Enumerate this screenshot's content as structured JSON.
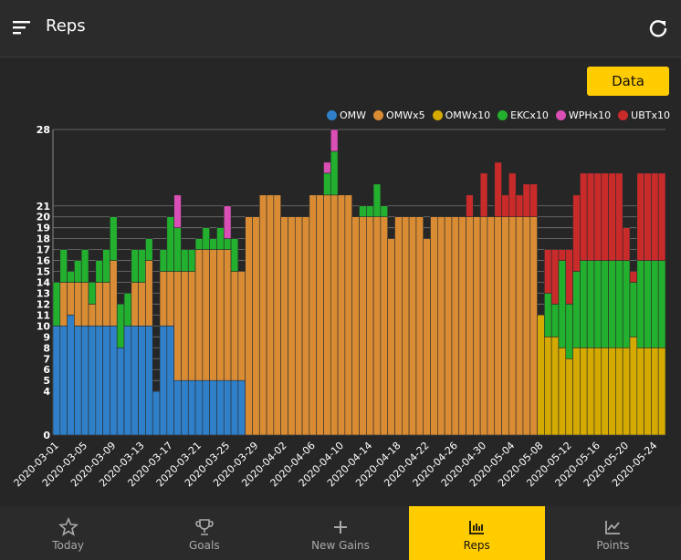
{
  "header": {
    "title": "Reps"
  },
  "button": "Data",
  "nav": [
    "Today",
    "Goals",
    "New Gains",
    "Reps",
    "Points"
  ],
  "chart_data": {
    "type": "bar",
    "stacked": true,
    "categories": [
      "2020-03-01",
      null,
      null,
      null,
      "2020-03-05",
      null,
      null,
      null,
      "2020-03-09",
      null,
      null,
      null,
      "2020-03-13",
      null,
      null,
      null,
      "2020-03-17",
      null,
      null,
      null,
      "2020-03-21",
      null,
      null,
      null,
      "2020-03-25",
      null,
      null,
      null,
      "2020-03-29",
      null,
      null,
      null,
      "2020-04-02",
      null,
      null,
      null,
      "2020-04-06",
      null,
      null,
      null,
      "2020-04-10",
      null,
      null,
      null,
      "2020-04-14",
      null,
      null,
      null,
      "2020-04-18",
      null,
      null,
      null,
      "2020-04-22",
      null,
      null,
      null,
      "2020-04-26",
      null,
      null,
      null,
      "2020-04-30",
      null,
      null,
      null,
      "2020-05-04",
      null,
      null,
      null,
      "2020-05-08",
      null,
      null,
      null,
      "2020-05-12",
      null,
      null,
      null,
      "2020-05-16",
      null,
      null,
      null,
      "2020-05-20",
      null,
      null,
      null,
      "2020-05-24",
      null
    ],
    "series": [
      {
        "name": "OMW",
        "color": "#2f80c9",
        "values": [
          10,
          10,
          11,
          10,
          10,
          10,
          10,
          10,
          10,
          8,
          10,
          10,
          10,
          10,
          4,
          10,
          10,
          5,
          5,
          5,
          5,
          5,
          5,
          5,
          5,
          5,
          5,
          0,
          0,
          0,
          0,
          0,
          0,
          0,
          0,
          0,
          0,
          0,
          0,
          0,
          0,
          0,
          0,
          0,
          0,
          0,
          0,
          0,
          0,
          0,
          0,
          0,
          0,
          0,
          0,
          0,
          0,
          0,
          0,
          0,
          0,
          0,
          0,
          0,
          0,
          0,
          0,
          0,
          0,
          0,
          0,
          0,
          0,
          0,
          0,
          0,
          0,
          0,
          0,
          0,
          0,
          0,
          0,
          0,
          0,
          0
        ]
      },
      {
        "name": "OMWx5",
        "color": "#d98c33",
        "values": [
          0,
          4,
          3,
          4,
          4,
          2,
          4,
          4,
          6,
          0,
          0,
          4,
          4,
          6,
          0,
          5,
          5,
          10,
          10,
          10,
          12,
          12,
          12,
          12,
          12,
          10,
          10,
          20,
          20,
          22,
          22,
          22,
          20,
          20,
          20,
          20,
          22,
          22,
          22,
          22,
          22,
          22,
          20,
          20,
          20,
          20,
          20,
          18,
          20,
          20,
          20,
          20,
          18,
          20,
          20,
          20,
          20,
          20,
          20,
          20,
          20,
          20,
          20,
          20,
          20,
          20,
          20,
          20,
          0,
          0,
          0,
          0,
          0,
          0,
          0,
          0,
          0,
          0,
          0,
          0,
          0,
          0,
          0,
          0,
          0,
          0
        ]
      },
      {
        "name": "OMWx10",
        "color": "#d4aa00",
        "values": [
          0,
          0,
          0,
          0,
          0,
          0,
          0,
          0,
          0,
          0,
          0,
          0,
          0,
          0,
          0,
          0,
          0,
          0,
          0,
          0,
          0,
          0,
          0,
          0,
          0,
          0,
          0,
          0,
          0,
          0,
          0,
          0,
          0,
          0,
          0,
          0,
          0,
          0,
          0,
          0,
          0,
          0,
          0,
          0,
          0,
          0,
          0,
          0,
          0,
          0,
          0,
          0,
          0,
          0,
          0,
          0,
          0,
          0,
          0,
          0,
          0,
          0,
          0,
          0,
          0,
          0,
          0,
          0,
          11,
          9,
          9,
          8,
          7,
          8,
          8,
          8,
          8,
          8,
          8,
          8,
          8,
          9,
          8,
          8,
          8,
          8
        ]
      },
      {
        "name": "EKCx10",
        "color": "#22b02e",
        "values": [
          4,
          3,
          1,
          2,
          3,
          2,
          2,
          3,
          4,
          4,
          3,
          3,
          3,
          2,
          0,
          2,
          5,
          4,
          2,
          2,
          1,
          2,
          1,
          2,
          1,
          3,
          0,
          0,
          0,
          0,
          0,
          0,
          0,
          0,
          0,
          0,
          0,
          0,
          2,
          4,
          0,
          0,
          0,
          1,
          1,
          3,
          1,
          0,
          0,
          0,
          0,
          0,
          0,
          0,
          0,
          0,
          0,
          0,
          0,
          0,
          0,
          0,
          0,
          0,
          0,
          0,
          0,
          0,
          0,
          4,
          3,
          8,
          5,
          7,
          8,
          8,
          8,
          8,
          8,
          8,
          8,
          5,
          8,
          8,
          8,
          8
        ]
      },
      {
        "name": "WPHx10",
        "color": "#d94fb5",
        "values": [
          0,
          0,
          0,
          0,
          0,
          0,
          0,
          0,
          0,
          0,
          0,
          0,
          0,
          0,
          0,
          0,
          0,
          3,
          0,
          0,
          0,
          0,
          0,
          0,
          3,
          0,
          0,
          0,
          0,
          0,
          0,
          0,
          0,
          0,
          0,
          0,
          0,
          0,
          1,
          2,
          0,
          0,
          0,
          0,
          0,
          0,
          0,
          0,
          0,
          0,
          0,
          0,
          0,
          0,
          0,
          0,
          0,
          0,
          0,
          0,
          0,
          0,
          0,
          0,
          0,
          0,
          0,
          0,
          0,
          0,
          0,
          0,
          0,
          0,
          0,
          0,
          0,
          0,
          0,
          0,
          0,
          0,
          0,
          0,
          0,
          0
        ]
      },
      {
        "name": "UBTx10",
        "color": "#c92a2a",
        "values": [
          0,
          0,
          0,
          0,
          0,
          0,
          0,
          0,
          0,
          0,
          0,
          0,
          0,
          0,
          0,
          0,
          0,
          0,
          0,
          0,
          0,
          0,
          0,
          0,
          0,
          0,
          0,
          0,
          0,
          0,
          0,
          0,
          0,
          0,
          0,
          0,
          0,
          0,
          0,
          0,
          0,
          0,
          0,
          0,
          0,
          0,
          0,
          0,
          0,
          0,
          0,
          0,
          0,
          0,
          0,
          0,
          0,
          0,
          2,
          0,
          4,
          0,
          5,
          2,
          4,
          2,
          3,
          3,
          0,
          4,
          5,
          1,
          5,
          7,
          8,
          8,
          8,
          8,
          8,
          8,
          3,
          1,
          8,
          8,
          8,
          8
        ]
      }
    ],
    "ylim": [
      0,
      28
    ],
    "yticks": [
      0,
      4,
      5,
      6,
      7,
      8,
      9,
      10,
      11,
      12,
      13,
      14,
      15,
      16,
      17,
      18,
      19,
      20,
      21,
      28
    ],
    "grid": true
  }
}
